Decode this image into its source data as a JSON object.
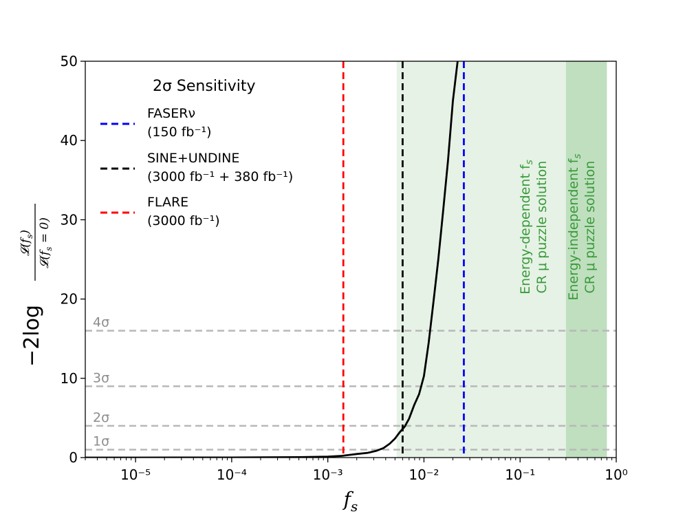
{
  "chart_data": {
    "type": "line",
    "x_scale": "log",
    "xlim": [
      3e-06,
      1.0
    ],
    "ylim": [
      0,
      50
    ],
    "xlabel": "f_s",
    "ylabel": "−2log 𝓛(f_s) / 𝓛(f_s = 0)",
    "x_ticks": [
      {
        "value": 1e-05,
        "label": "10⁻⁵"
      },
      {
        "value": 0.0001,
        "label": "10⁻⁴"
      },
      {
        "value": 0.001,
        "label": "10⁻³"
      },
      {
        "value": 0.01,
        "label": "10⁻²"
      },
      {
        "value": 0.1,
        "label": "10⁻¹"
      },
      {
        "value": 1,
        "label": "10⁰"
      }
    ],
    "y_ticks": [
      {
        "value": 0,
        "label": "0"
      },
      {
        "value": 10,
        "label": "10"
      },
      {
        "value": 20,
        "label": "20"
      },
      {
        "value": 30,
        "label": "30"
      },
      {
        "value": 40,
        "label": "40"
      },
      {
        "value": 50,
        "label": "50"
      }
    ],
    "curve": {
      "name": "likelihood",
      "color": "#000000",
      "x": [
        3e-06,
        1e-05,
        0.0001,
        0.0005,
        0.001,
        0.0014,
        0.002,
        0.0026,
        0.0032,
        0.0038,
        0.0044,
        0.005,
        0.0056,
        0.0063,
        0.007,
        0.0079,
        0.0089,
        0.01,
        0.0112,
        0.0126,
        0.0141,
        0.0158,
        0.0178,
        0.02,
        0.0224
      ],
      "y": [
        0,
        0,
        0.01,
        0.05,
        0.12,
        0.22,
        0.45,
        0.6,
        0.85,
        1.2,
        1.75,
        2.4,
        3.2,
        3.9,
        4.9,
        6.6,
        8.0,
        10.3,
        14.5,
        19.8,
        25.0,
        31.0,
        37.5,
        45.0,
        50.0
      ]
    },
    "sensitivity_lines": [
      {
        "name": "FASERν",
        "sub": "(150 fb⁻¹)",
        "x": 0.026,
        "color": "#0000ff"
      },
      {
        "name": "SINE+UNDINE",
        "sub": "(3000 fb⁻¹ + 380 fb⁻¹)",
        "x": 0.006,
        "color": "#000000"
      },
      {
        "name": "FLARE",
        "sub": "(3000 fb⁻¹)",
        "x": 0.00145,
        "color": "#ff0000"
      }
    ],
    "sigma_lines": [
      {
        "label": "1σ",
        "y": 1
      },
      {
        "label": "2σ",
        "y": 4
      },
      {
        "label": "3σ",
        "y": 9
      },
      {
        "label": "4σ",
        "y": 16
      }
    ],
    "bands": [
      {
        "x_from": 0.0052,
        "x_to": 0.3,
        "color": "#e6f2e6",
        "label_line1": "Energy-dependent f",
        "label_line2": "CR μ puzzle solution"
      },
      {
        "x_from": 0.3,
        "x_to": 0.8,
        "color": "#bfdfbf",
        "label_line1": "Energy-independent f",
        "label_line2": "CR μ puzzle solution"
      }
    ],
    "legend": {
      "title": "2σ Sensitivity",
      "position": "top-left"
    }
  }
}
